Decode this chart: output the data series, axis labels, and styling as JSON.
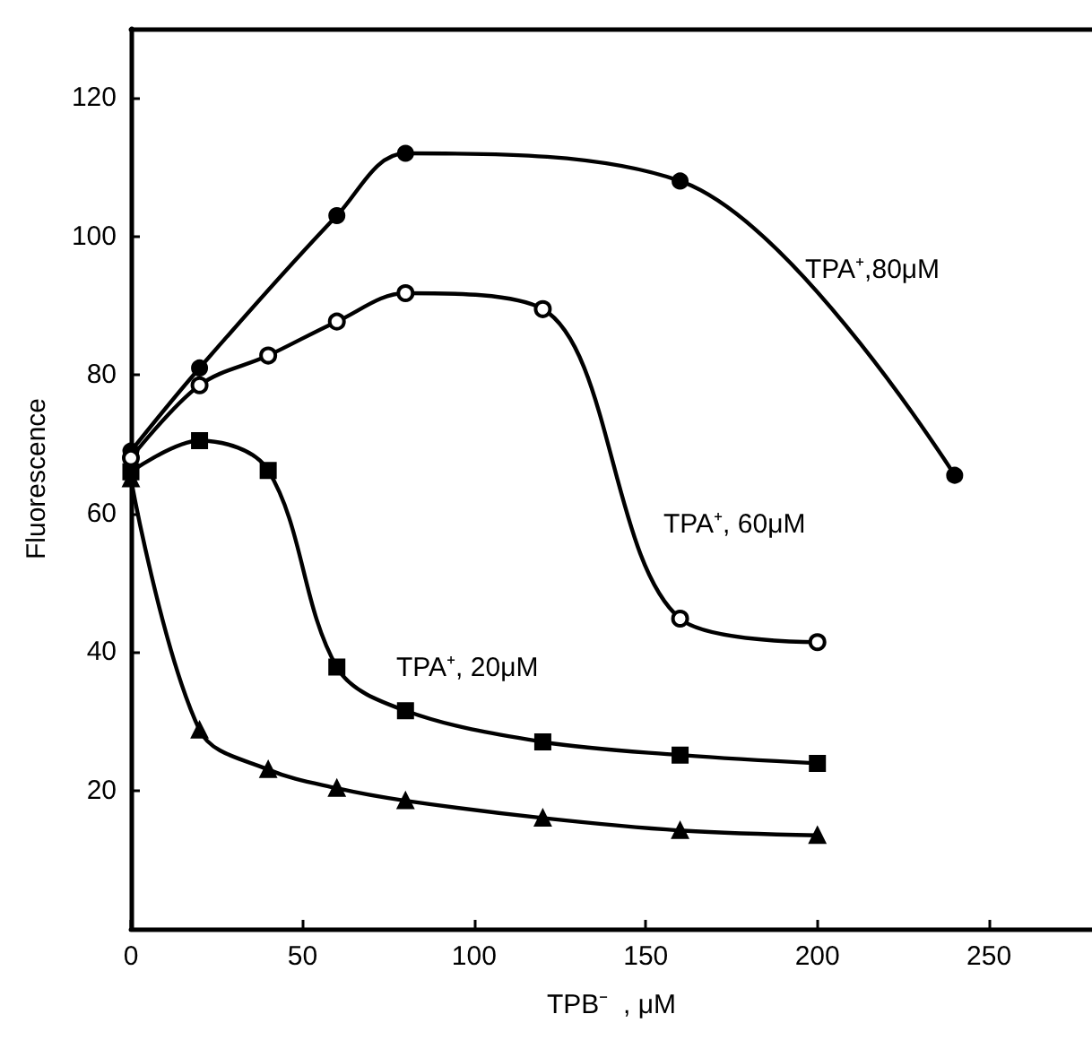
{
  "chart_data": {
    "type": "line",
    "xlabel": "TPB⁻  , μM",
    "ylabel": "Fluorescence",
    "xlim": [
      0,
      280
    ],
    "xticks": [
      0,
      50,
      100,
      150,
      200,
      250
    ],
    "ylim": [
      0,
      130
    ],
    "yticks": [
      20,
      40,
      60,
      80,
      100,
      120
    ],
    "grid": false,
    "series": [
      {
        "name": "TPA⁺,80μM",
        "color": "#000000",
        "marker": "circle",
        "x": [
          0,
          20,
          60,
          80,
          160,
          240
        ],
        "values": [
          69,
          81,
          103,
          112,
          108,
          65.5
        ]
      },
      {
        "name": "TPA⁺, 60μM",
        "color": "#000000",
        "marker": "open circle",
        "x": [
          0,
          20,
          40,
          60,
          80,
          120,
          160,
          200
        ],
        "values": [
          68,
          78.5,
          82.8,
          87.7,
          91.8,
          89.5,
          44.8,
          41.4
        ]
      },
      {
        "name": "TPA⁺, 20μM",
        "color": "#000000",
        "marker": "square",
        "x": [
          0,
          20,
          40,
          60,
          80,
          120,
          160,
          200
        ],
        "values": [
          66,
          70.5,
          66.2,
          37.8,
          31.5,
          27,
          25.1,
          23.9
        ]
      },
      {
        "color": "#000000",
        "marker": "triangle",
        "x": [
          0,
          20,
          40,
          60,
          80,
          120,
          160,
          200
        ],
        "values": [
          65,
          28.7,
          23,
          20.3,
          18.5,
          16,
          14.2,
          13.5
        ]
      }
    ]
  }
}
